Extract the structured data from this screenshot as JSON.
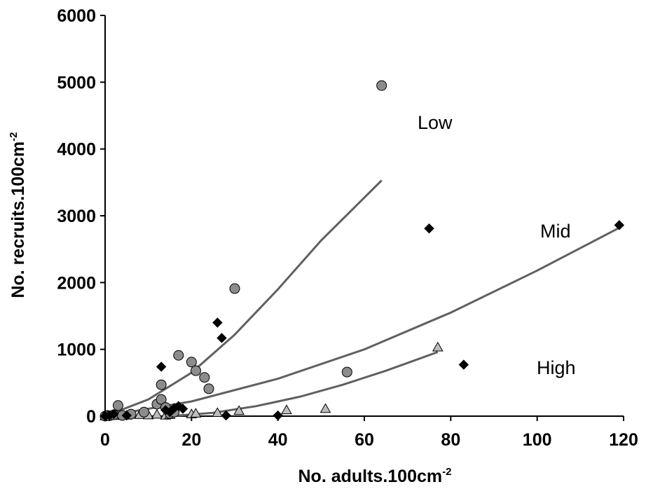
{
  "chart_data": {
    "type": "scatter",
    "title": "",
    "xlabel": {
      "main": "No. adults.100cm",
      "sup": "-2"
    },
    "ylabel": {
      "main": "No. recruits.100cm",
      "sup": "-2"
    },
    "xlim": [
      0,
      120
    ],
    "ylim": [
      0,
      6000
    ],
    "x_ticks": [
      "0",
      "20",
      "40",
      "60",
      "80",
      "100",
      "120"
    ],
    "y_ticks": [
      "0",
      "1000",
      "2000",
      "3000",
      "4000",
      "5000",
      "6000"
    ],
    "grid": false,
    "legend": "none",
    "series": [
      {
        "name": "Low",
        "marker": "circle",
        "color": "#8c8c8c",
        "points": [
          [
            0,
            0
          ],
          [
            0.5,
            10
          ],
          [
            1,
            5
          ],
          [
            2,
            20
          ],
          [
            3,
            160
          ],
          [
            4,
            10
          ],
          [
            6,
            30
          ],
          [
            9,
            60
          ],
          [
            12,
            180
          ],
          [
            13,
            250
          ],
          [
            13,
            470
          ],
          [
            14,
            130
          ],
          [
            15,
            40
          ],
          [
            16,
            60
          ],
          [
            17,
            910
          ],
          [
            20,
            810
          ],
          [
            21,
            680
          ],
          [
            23,
            580
          ],
          [
            24,
            410
          ],
          [
            30,
            1910
          ],
          [
            56,
            660
          ],
          [
            64,
            4950
          ]
        ],
        "fit": {
          "x_start": 0,
          "x_end": 64,
          "points": [
            [
              0,
              0
            ],
            [
              10,
              250
            ],
            [
              20,
              650
            ],
            [
              30,
              1220
            ],
            [
              40,
              1900
            ],
            [
              50,
              2630
            ],
            [
              64,
              3530
            ]
          ]
        }
      },
      {
        "name": "Mid",
        "marker": "diamond",
        "color": "#000000",
        "points": [
          [
            0,
            0
          ],
          [
            1,
            10
          ],
          [
            2,
            30
          ],
          [
            5,
            10
          ],
          [
            13,
            740
          ],
          [
            14,
            90
          ],
          [
            15,
            60
          ],
          [
            16,
            120
          ],
          [
            17,
            150
          ],
          [
            18,
            110
          ],
          [
            26,
            1400
          ],
          [
            27,
            1170
          ],
          [
            28,
            10
          ],
          [
            40,
            10
          ],
          [
            75,
            2810
          ],
          [
            83,
            770
          ],
          [
            119,
            2860
          ]
        ],
        "fit": {
          "x_start": 0,
          "x_end": 119,
          "points": [
            [
              0,
              0
            ],
            [
              20,
              220
            ],
            [
              40,
              560
            ],
            [
              60,
              1000
            ],
            [
              80,
              1550
            ],
            [
              100,
              2180
            ],
            [
              119,
              2820
            ]
          ]
        }
      },
      {
        "name": "High",
        "marker": "triangle",
        "color": "#bdbdbd",
        "points": [
          [
            0,
            0
          ],
          [
            2,
            5
          ],
          [
            5,
            10
          ],
          [
            8,
            20
          ],
          [
            10,
            15
          ],
          [
            12,
            25
          ],
          [
            14,
            10
          ],
          [
            15,
            20
          ],
          [
            20,
            30
          ],
          [
            21,
            40
          ],
          [
            26,
            50
          ],
          [
            31,
            80
          ],
          [
            42,
            90
          ],
          [
            51,
            110
          ],
          [
            77,
            1030
          ]
        ],
        "fit": {
          "x_start": 15,
          "x_end": 77,
          "points": [
            [
              15,
              0
            ],
            [
              25,
              50
            ],
            [
              35,
              150
            ],
            [
              45,
              290
            ],
            [
              55,
              470
            ],
            [
              65,
              680
            ],
            [
              77,
              960
            ]
          ]
        }
      }
    ],
    "annotations": [
      "Low",
      "Mid",
      "High"
    ]
  }
}
